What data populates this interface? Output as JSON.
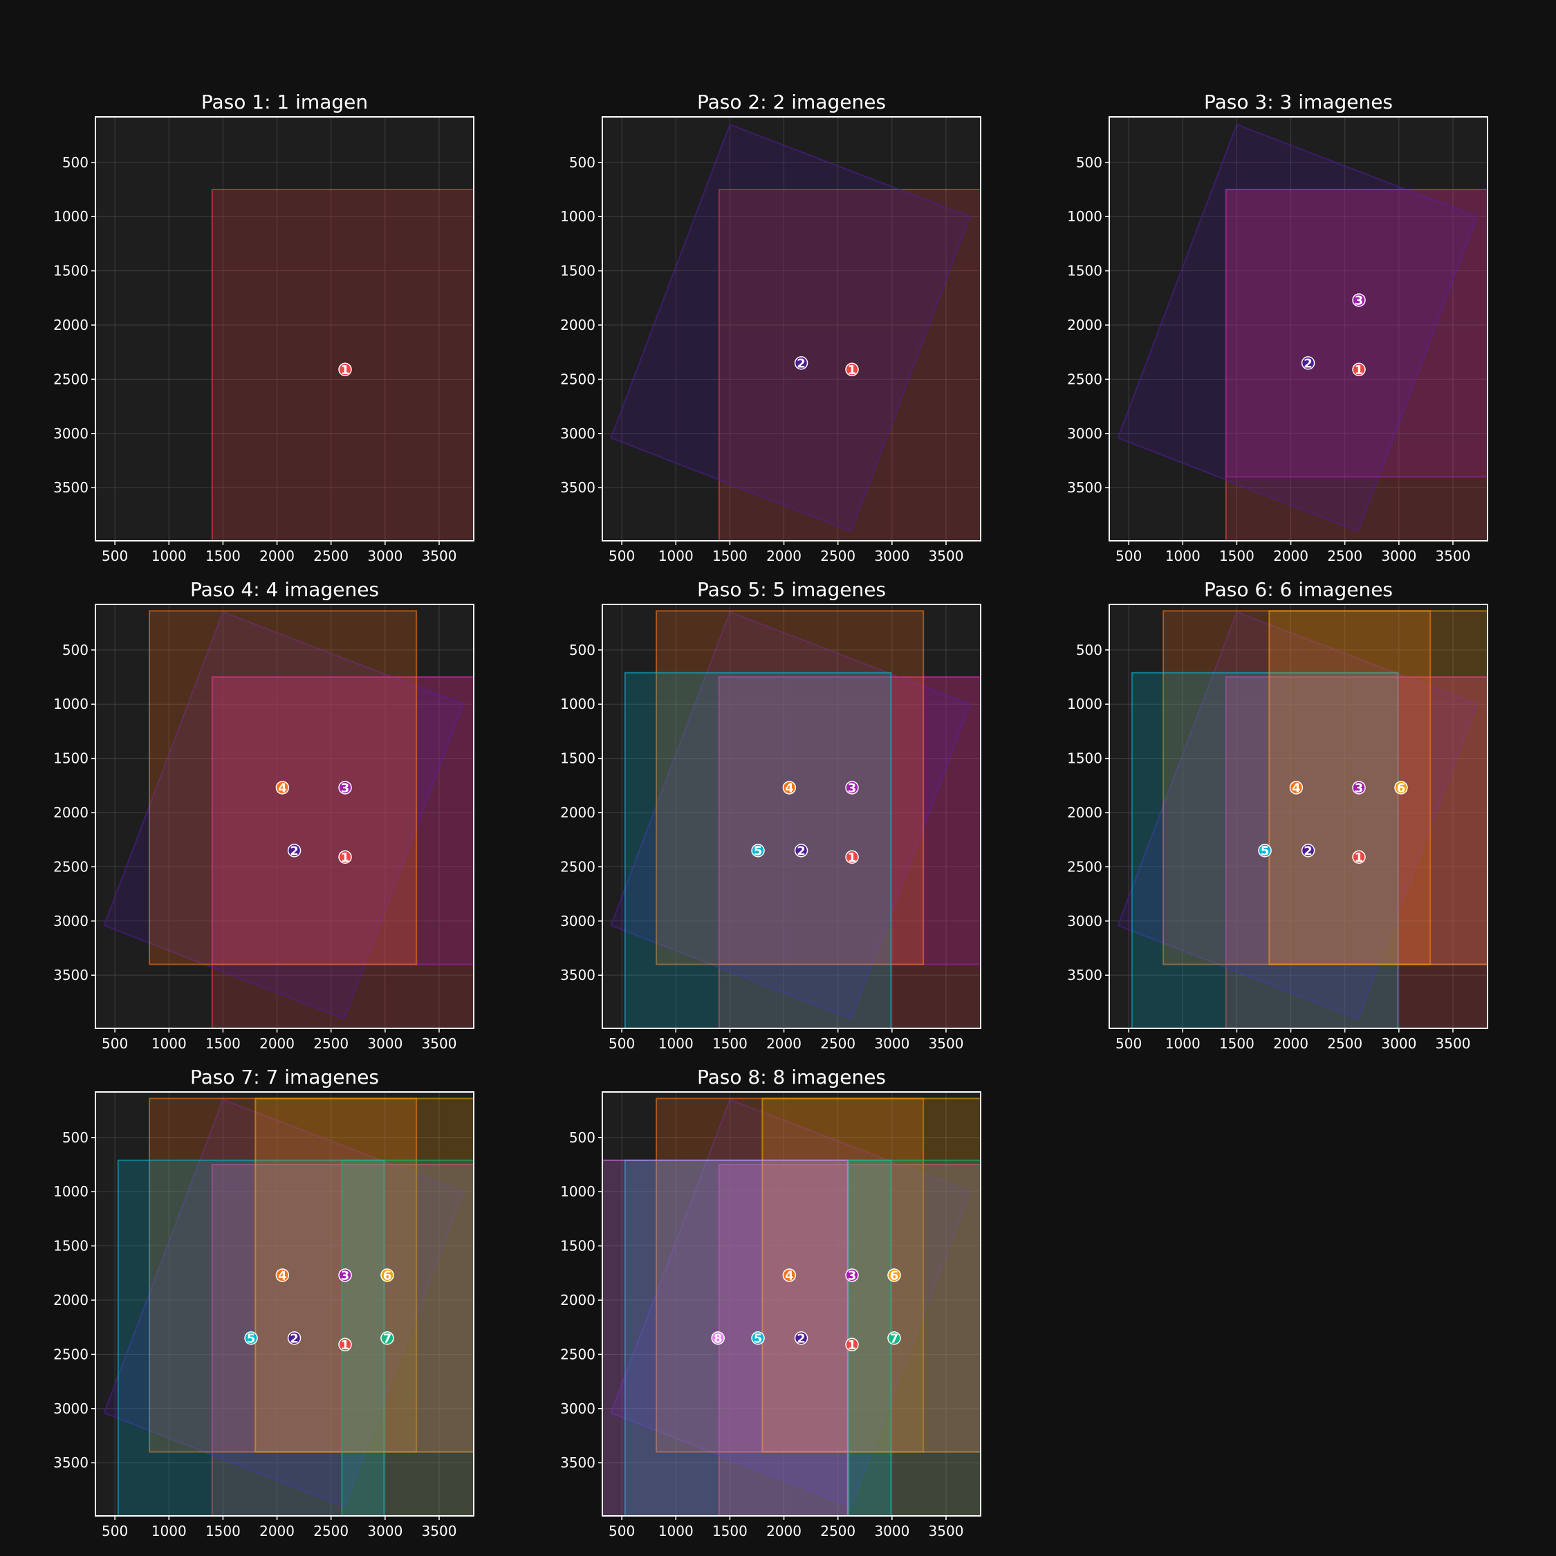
{
  "figure": {
    "background": "#111111",
    "panel_background": "#1e1e1e"
  },
  "chart_data": [
    {
      "type": "scatter",
      "title": "Paso 1: 1 imagen",
      "images": [
        1
      ]
    },
    {
      "type": "scatter",
      "title": "Paso 2: 2 imagenes",
      "images": [
        1,
        2
      ]
    },
    {
      "type": "scatter",
      "title": "Paso 3: 3 imagenes",
      "images": [
        1,
        2,
        3
      ]
    },
    {
      "type": "scatter",
      "title": "Paso 4: 4 imagenes",
      "images": [
        1,
        2,
        3,
        4
      ]
    },
    {
      "type": "scatter",
      "title": "Paso 5: 5 imagenes",
      "images": [
        1,
        2,
        3,
        4,
        5
      ]
    },
    {
      "type": "scatter",
      "title": "Paso 6: 6 imagenes",
      "images": [
        1,
        2,
        3,
        4,
        5,
        6
      ]
    },
    {
      "type": "scatter",
      "title": "Paso 7: 7 imagenes",
      "images": [
        1,
        2,
        3,
        4,
        5,
        6,
        7
      ]
    },
    {
      "type": "scatter",
      "title": "Paso 8: 8 imagenes",
      "images": [
        1,
        2,
        3,
        4,
        5,
        6,
        7,
        8
      ]
    }
  ],
  "axes": {
    "xlim": [
      320,
      3820
    ],
    "ylim": [
      3990,
      80
    ],
    "y_inverted": true,
    "xticks": [
      500,
      1000,
      1500,
      2000,
      2500,
      3000,
      3500
    ],
    "yticks": [
      500,
      1000,
      1500,
      2000,
      2500,
      3000,
      3500
    ],
    "grid": true
  },
  "image_footprints": [
    {
      "label": "1",
      "center": [
        2630,
        2410
      ],
      "color": "#ef4444",
      "polygon": [
        [
          1400,
          750
        ],
        [
          3820,
          750
        ],
        [
          3820,
          3990
        ],
        [
          1400,
          3990
        ]
      ]
    },
    {
      "label": "2",
      "center": [
        2160,
        2350
      ],
      "color": "#4c1d95",
      "polygon": [
        [
          1500,
          150
        ],
        [
          3720,
          1000
        ],
        [
          2620,
          3900
        ],
        [
          400,
          3040
        ]
      ]
    },
    {
      "label": "3",
      "center": [
        2630,
        1770
      ],
      "color": "#a21caf",
      "polygon": [
        [
          1400,
          750
        ],
        [
          3820,
          750
        ],
        [
          3820,
          3400
        ],
        [
          1400,
          3400
        ]
      ]
    },
    {
      "label": "4",
      "center": [
        2050,
        1770
      ],
      "color": "#f97316",
      "polygon": [
        [
          820,
          140
        ],
        [
          3290,
          140
        ],
        [
          3290,
          3400
        ],
        [
          820,
          3400
        ]
      ]
    },
    {
      "label": "5",
      "center": [
        1760,
        2350
      ],
      "color": "#06b6d4",
      "polygon": [
        [
          530,
          710
        ],
        [
          2990,
          710
        ],
        [
          2990,
          3990
        ],
        [
          530,
          3990
        ]
      ]
    },
    {
      "label": "6",
      "center": [
        3020,
        1770
      ],
      "color": "#f59e0b",
      "polygon": [
        [
          1800,
          140
        ],
        [
          3820,
          140
        ],
        [
          3820,
          3400
        ],
        [
          1800,
          3400
        ]
      ]
    },
    {
      "label": "7",
      "center": [
        3020,
        2350
      ],
      "color": "#10b981",
      "polygon": [
        [
          2600,
          710
        ],
        [
          3820,
          710
        ],
        [
          3820,
          3990
        ],
        [
          2600,
          3990
        ]
      ]
    },
    {
      "label": "8",
      "center": [
        1390,
        2350
      ],
      "color": "#e879f9",
      "polygon": [
        [
          320,
          710
        ],
        [
          2590,
          710
        ],
        [
          2590,
          3990
        ],
        [
          320,
          3990
        ]
      ]
    }
  ]
}
